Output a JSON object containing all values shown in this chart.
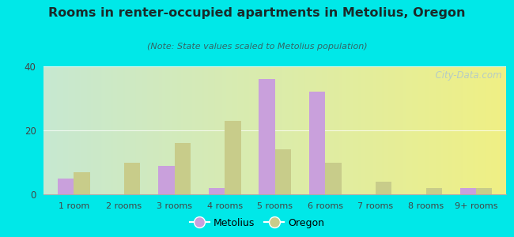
{
  "title": "Rooms in renter-occupied apartments in Metolius, Oregon",
  "subtitle": "(Note: State values scaled to Metolius population)",
  "categories": [
    "1 room",
    "2 rooms",
    "3 rooms",
    "4 rooms",
    "5 rooms",
    "6 rooms",
    "7 rooms",
    "8 rooms",
    "9+ rooms"
  ],
  "metolius": [
    5,
    0,
    9,
    2,
    36,
    32,
    0,
    0,
    2
  ],
  "oregon": [
    7,
    10,
    16,
    23,
    14,
    10,
    4,
    2,
    2
  ],
  "metolius_color": "#c9a0dc",
  "oregon_color": "#c8cc8a",
  "background_outer": "#00e8e8",
  "ylim": [
    0,
    40
  ],
  "yticks": [
    0,
    20,
    40
  ],
  "bar_width": 0.32,
  "watermark": "  City-Data.com"
}
